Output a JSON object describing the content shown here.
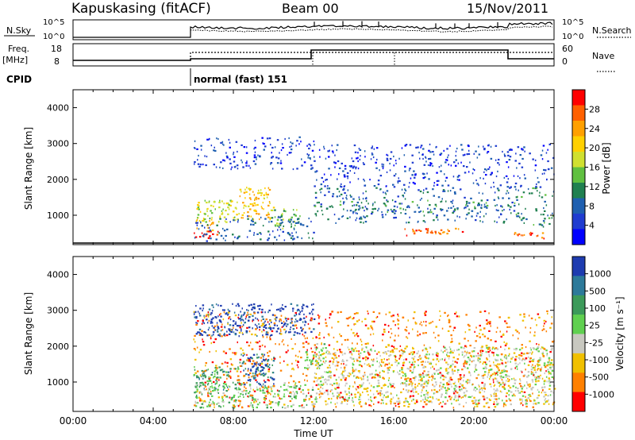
{
  "header": {
    "station": "Kapuskasing (fitACF)",
    "beam": "Beam 00",
    "date": "15/Nov/2011"
  },
  "params": {
    "nsky_label": "N.Sky",
    "nsky_ticks": [
      "10^5",
      "10^0"
    ],
    "nsearch_label": "N.Search",
    "nsearch_ticks": [
      "10^5",
      "10^0"
    ],
    "freq_label": "Freq.",
    "freq_unit": "[MHz]",
    "freq_ticks": [
      "18",
      "8"
    ],
    "nave_label": "Nave",
    "nave_ticks": [
      "60",
      "0"
    ],
    "cpid_label": "CPID",
    "cpid_text": "normal (fast) 151"
  },
  "chart_data": [
    {
      "type": "heatmap",
      "name": "power",
      "ylabel": "Slant Range [km]",
      "xlabel": "Time UT",
      "x_ticks": [
        "00:00",
        "04:00",
        "08:00",
        "12:00",
        "16:00",
        "20:00",
        "00:00"
      ],
      "y_ticks": [
        "1000",
        "2000",
        "3000",
        "4000"
      ],
      "ylim": [
        180,
        4500
      ],
      "xlim_hours": [
        0,
        24
      ],
      "colorbar": {
        "label": "Power [dB]",
        "ticks": [
          "28",
          "24",
          "20",
          "16",
          "12",
          "8",
          "4"
        ],
        "colors": [
          "#ff0000",
          "#ff6000",
          "#ffa000",
          "#ffd000",
          "#d0e030",
          "#60c040",
          "#208050",
          "#1e5fb0",
          "#1f3cd0",
          "#0000ff"
        ]
      },
      "regions": [
        {
          "t0": 6.0,
          "t1": 7.3,
          "r0": 380,
          "r1": 620,
          "level": 0
        },
        {
          "t0": 6.0,
          "t1": 7.0,
          "r0": 600,
          "r1": 900,
          "level": 2
        },
        {
          "t0": 6.1,
          "t1": 8.3,
          "r0": 820,
          "r1": 1450,
          "level": 4
        },
        {
          "t0": 8.3,
          "t1": 10.0,
          "r0": 900,
          "r1": 1800,
          "level": 3
        },
        {
          "t0": 10.0,
          "t1": 11.3,
          "r0": 650,
          "r1": 1200,
          "level": 5
        },
        {
          "t0": 6.0,
          "t1": 12.0,
          "r0": 300,
          "r1": 1000,
          "level": 7
        },
        {
          "t0": 6.0,
          "t1": 12.0,
          "r0": 2300,
          "r1": 3200,
          "level": 8
        },
        {
          "t0": 12.0,
          "t1": 22.0,
          "r0": 800,
          "r1": 1800,
          "level": 7
        },
        {
          "t0": 12.0,
          "t1": 22.0,
          "r0": 1100,
          "r1": 1450,
          "level": 6
        },
        {
          "t0": 16.5,
          "t1": 19.5,
          "r0": 450,
          "r1": 650,
          "level": 1
        },
        {
          "t0": 22.0,
          "t1": 24.0,
          "r0": 700,
          "r1": 1800,
          "level": 6
        },
        {
          "t0": 22.0,
          "t1": 23.5,
          "r0": 350,
          "r1": 550,
          "level": 1
        },
        {
          "t0": 12.0,
          "t1": 24.0,
          "r0": 1800,
          "r1": 3000,
          "level": 8
        }
      ]
    },
    {
      "type": "heatmap",
      "name": "velocity",
      "ylabel": "Slant Range [km]",
      "xlabel": "Time UT",
      "x_ticks": [
        "00:00",
        "04:00",
        "08:00",
        "12:00",
        "16:00",
        "20:00",
        "00:00"
      ],
      "y_ticks": [
        "1000",
        "2000",
        "3000",
        "4000"
      ],
      "ylim": [
        180,
        4500
      ],
      "xlim_hours": [
        0,
        24
      ],
      "colorbar": {
        "label": "Velocity [m s⁻¹]",
        "ticks": [
          "1000",
          "500",
          "100",
          "25",
          "-25",
          "-100",
          "-500",
          "-1000"
        ],
        "colors": [
          "#1e3cb0",
          "#2d7a9a",
          "#3c9a5a",
          "#60d050",
          "#c8c8c0",
          "#f0c000",
          "#ff8000",
          "#ff0000"
        ]
      },
      "regions": [
        {
          "t0": 6.0,
          "t1": 8.3,
          "r0": 800,
          "r1": 1450,
          "level": 2
        },
        {
          "t0": 8.3,
          "t1": 10.0,
          "r0": 900,
          "r1": 1800,
          "level": 1
        },
        {
          "t0": 8.7,
          "t1": 9.6,
          "r0": 1200,
          "r1": 1750,
          "level": 0
        },
        {
          "t0": 6.0,
          "t1": 12.0,
          "r0": 300,
          "r1": 1000,
          "level": 3
        },
        {
          "t0": 6.0,
          "t1": 12.0,
          "r0": 2300,
          "r1": 3200,
          "level": 0
        },
        {
          "t0": 11.5,
          "t1": 12.5,
          "r0": 1400,
          "r1": 2100,
          "level": 3
        },
        {
          "t0": 12.0,
          "t1": 24.0,
          "r0": 800,
          "r1": 2000,
          "level": 4
        },
        {
          "t0": 12.0,
          "t1": 24.0,
          "r0": 400,
          "r1": 800,
          "level": 4
        },
        {
          "t0": 6.0,
          "t1": 24.0,
          "r0": 300,
          "r1": 3000,
          "level": 6
        }
      ]
    }
  ]
}
